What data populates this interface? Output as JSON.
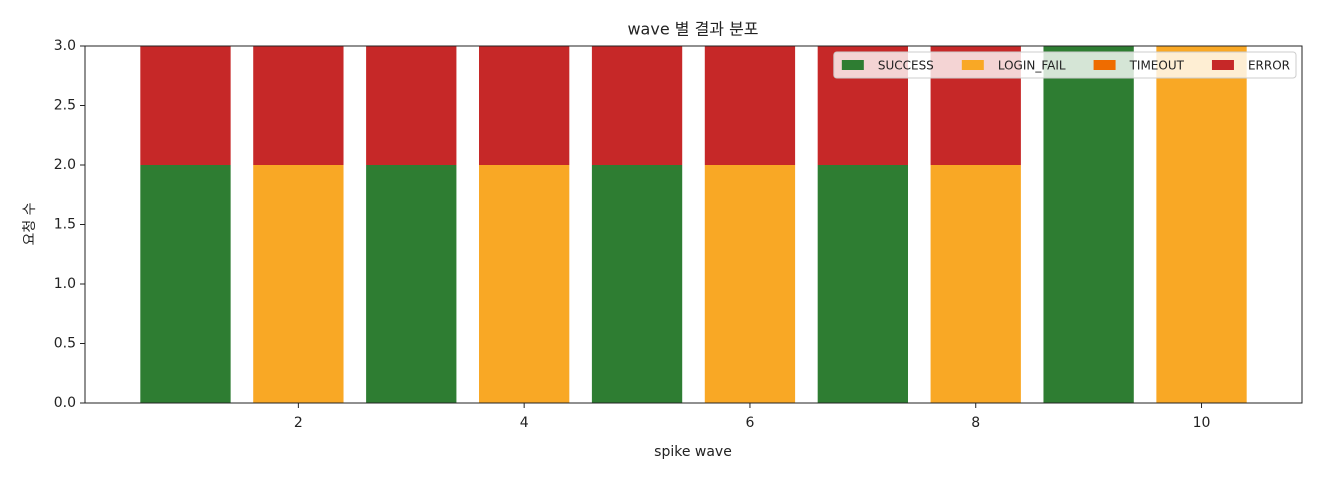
{
  "chart_data": {
    "type": "bar",
    "stacked": true,
    "title": "wave 별 결과 분포",
    "x_label": "spike wave",
    "y_label": "요청 수",
    "x": [
      1,
      2,
      3,
      4,
      5,
      6,
      7,
      8,
      9,
      10
    ],
    "series": [
      {
        "name": "SUCCESS",
        "color": "#2e7d32",
        "values": [
          2,
          0,
          2,
          0,
          2,
          0,
          2,
          0,
          3,
          0
        ]
      },
      {
        "name": "LOGIN_FAIL",
        "color": "#f9a825",
        "values": [
          0,
          2,
          0,
          2,
          0,
          2,
          0,
          2,
          0,
          3
        ]
      },
      {
        "name": "TIMEOUT",
        "color": "#ef6c00",
        "values": [
          0,
          0,
          0,
          0,
          0,
          0,
          0,
          0,
          0,
          0
        ]
      },
      {
        "name": "ERROR",
        "color": "#c62828",
        "values": [
          1,
          1,
          1,
          1,
          1,
          1,
          1,
          1,
          0,
          0
        ]
      }
    ],
    "xlim": [
      0.11,
      10.89
    ],
    "xticks": [
      2,
      4,
      6,
      8,
      10
    ],
    "ylim": [
      0,
      3
    ],
    "yticks": [
      {
        "value": 0,
        "label": "0.0"
      },
      {
        "value": 0.5,
        "label": "0.5"
      },
      {
        "value": 1,
        "label": "1.0"
      },
      {
        "value": 1.5,
        "label": "1.5"
      },
      {
        "value": 2,
        "label": "2.0"
      },
      {
        "value": 2.5,
        "label": "2.5"
      },
      {
        "value": 3,
        "label": "3.0"
      }
    ],
    "legend": "upper right"
  }
}
